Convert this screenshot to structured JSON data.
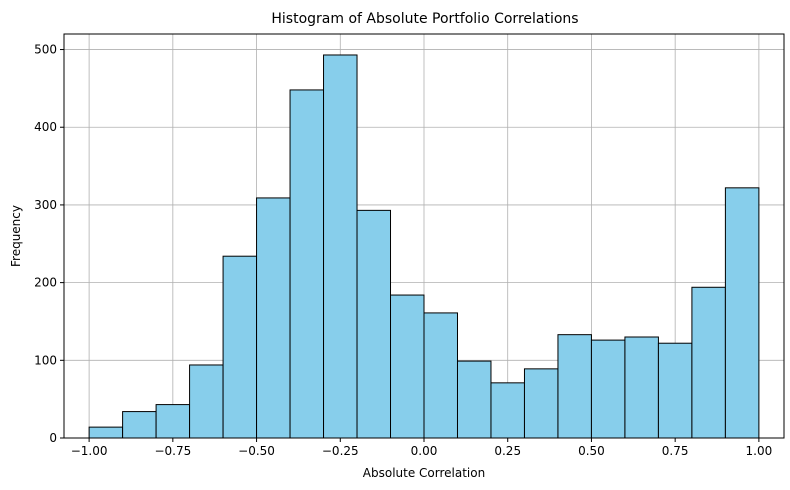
{
  "chart_data": {
    "type": "bar",
    "title": "Histogram of Absolute Portfolio Correlations",
    "xlabel": "Absolute Correlation",
    "ylabel": "Frequency",
    "xlim": [
      -1.075,
      1.075
    ],
    "ylim": [
      0,
      520
    ],
    "grid": true,
    "bar_color": "#87CEEB",
    "edge_color": "#000000",
    "bins": [
      {
        "start": -1.0,
        "end": -0.9,
        "value": 14
      },
      {
        "start": -0.9,
        "end": -0.8,
        "value": 34
      },
      {
        "start": -0.8,
        "end": -0.7,
        "value": 43
      },
      {
        "start": -0.7,
        "end": -0.6,
        "value": 94
      },
      {
        "start": -0.6,
        "end": -0.5,
        "value": 234
      },
      {
        "start": -0.5,
        "end": -0.4,
        "value": 309
      },
      {
        "start": -0.4,
        "end": -0.3,
        "value": 448
      },
      {
        "start": -0.3,
        "end": -0.2,
        "value": 493
      },
      {
        "start": -0.2,
        "end": -0.1,
        "value": 293
      },
      {
        "start": -0.1,
        "end": 0.0,
        "value": 184
      },
      {
        "start": 0.0,
        "end": 0.1,
        "value": 161
      },
      {
        "start": 0.1,
        "end": 0.2,
        "value": 99
      },
      {
        "start": 0.2,
        "end": 0.3,
        "value": 71
      },
      {
        "start": 0.3,
        "end": 0.4,
        "value": 89
      },
      {
        "start": 0.4,
        "end": 0.5,
        "value": 133
      },
      {
        "start": 0.5,
        "end": 0.6,
        "value": 126
      },
      {
        "start": 0.6,
        "end": 0.7,
        "value": 130
      },
      {
        "start": 0.7,
        "end": 0.8,
        "value": 122
      },
      {
        "start": 0.8,
        "end": 0.9,
        "value": 194
      },
      {
        "start": 0.9,
        "end": 1.0,
        "value": 322
      }
    ],
    "x_ticks": [
      {
        "value": -1.0,
        "label": "−1.00"
      },
      {
        "value": -0.75,
        "label": "−0.75"
      },
      {
        "value": -0.5,
        "label": "−0.50"
      },
      {
        "value": -0.25,
        "label": "−0.25"
      },
      {
        "value": 0.0,
        "label": "0.00"
      },
      {
        "value": 0.25,
        "label": "0.25"
      },
      {
        "value": 0.5,
        "label": "0.50"
      },
      {
        "value": 0.75,
        "label": "0.75"
      },
      {
        "value": 1.0,
        "label": "1.00"
      }
    ],
    "y_ticks": [
      {
        "value": 0,
        "label": "0"
      },
      {
        "value": 100,
        "label": "100"
      },
      {
        "value": 200,
        "label": "200"
      },
      {
        "value": 300,
        "label": "300"
      },
      {
        "value": 400,
        "label": "400"
      },
      {
        "value": 500,
        "label": "500"
      }
    ]
  }
}
